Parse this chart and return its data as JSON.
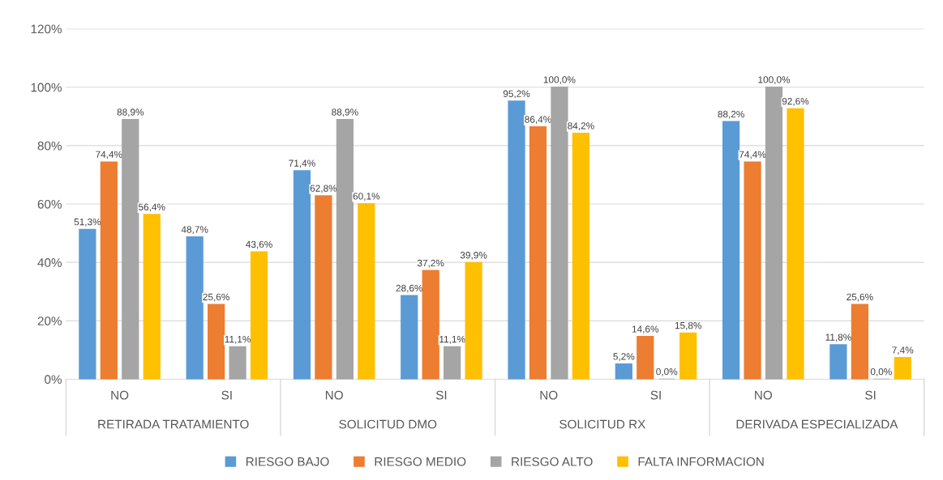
{
  "chart_data": {
    "type": "bar",
    "categories": [
      "NO",
      "SI",
      "NO",
      "SI",
      "NO",
      "SI",
      "NO",
      "SI"
    ],
    "annotations": [
      "RETIRADA TRATAMIENTO",
      "SOLICITUD DMO",
      "SOLICITUD RX",
      "DERIVADA ESPECIALIZADA"
    ],
    "series": [
      {
        "name": "RIESGO BAJO",
        "color": "#5b9bd5",
        "values": [
          51.3,
          48.7,
          71.4,
          28.6,
          95.2,
          5.2,
          88.2,
          11.8
        ],
        "value_labels": [
          "51,3%",
          "48,7%",
          "71,4%",
          "28,6%",
          "95,2%",
          "5,2%",
          "88,2%",
          "11,8%"
        ]
      },
      {
        "name": "RIESGO MEDIO",
        "color": "#ed7d31",
        "values": [
          74.4,
          25.6,
          62.8,
          37.2,
          86.4,
          14.6,
          74.4,
          25.6
        ],
        "value_labels": [
          "74,4%",
          "25,6%",
          "62,8%",
          "37,2%",
          "86,4%",
          "14,6%",
          "74,4%",
          "25,6%"
        ]
      },
      {
        "name": "RIESGO ALTO",
        "color": "#a5a5a5",
        "values": [
          88.9,
          11.1,
          88.9,
          11.1,
          100.0,
          0.0,
          100.0,
          0.0
        ],
        "value_labels": [
          "88,9%",
          "11,1%",
          "88,9%",
          "11,1%",
          "100,0%",
          "0,0%",
          "100,0%",
          "0,0%"
        ]
      },
      {
        "name": "FALTA INFORMACION",
        "color": "#ffc000",
        "values": [
          56.4,
          43.6,
          60.1,
          39.9,
          84.2,
          15.8,
          92.6,
          7.4
        ],
        "value_labels": [
          "56,4%",
          "43,6%",
          "60,1%",
          "39,9%",
          "84,2%",
          "15,8%",
          "92,6%",
          "7,4%"
        ]
      }
    ],
    "ylim": [
      0,
      120
    ],
    "yticks": [
      {
        "value": 0,
        "label": "0%"
      },
      {
        "value": 20,
        "label": "20%"
      },
      {
        "value": 40,
        "label": "40%"
      },
      {
        "value": 60,
        "label": "60%"
      },
      {
        "value": 80,
        "label": "80%"
      },
      {
        "value": 100,
        "label": "100%"
      },
      {
        "value": 120,
        "label": "120%"
      }
    ],
    "grid": "y",
    "legend": "bottom"
  }
}
